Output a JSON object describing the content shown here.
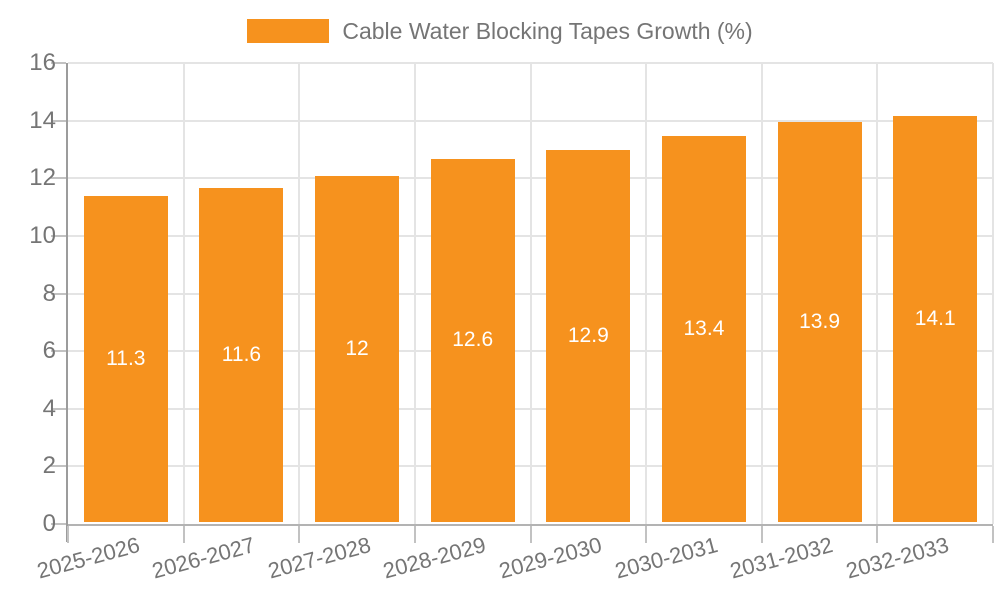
{
  "legend": {
    "label": "Cable Water Blocking Tapes Growth (%)",
    "swatch_color": "#f6921e"
  },
  "chart_data": {
    "type": "bar",
    "title": "Cable Water Blocking Tapes Growth (%)",
    "categories": [
      "2025-2026",
      "2026-2027",
      "2027-2028",
      "2028-2029",
      "2029-2030",
      "2030-2031",
      "2031-2032",
      "2032-2033"
    ],
    "values": [
      11.3,
      11.6,
      12,
      12.6,
      12.9,
      13.4,
      13.9,
      14.1
    ],
    "bar_labels": [
      "11.3",
      "11.6",
      "12",
      "12.6",
      "12.9",
      "13.4",
      "13.9",
      "14.1"
    ],
    "xlabel": "",
    "ylabel": "",
    "ylim": [
      0,
      16
    ],
    "yticks": [
      0,
      2,
      4,
      6,
      8,
      10,
      12,
      14,
      16
    ],
    "grid": true,
    "legend_position": "top",
    "bar_color": "#f6921e",
    "value_label_color": "#ffffff",
    "axis_text_color": "#757575"
  }
}
